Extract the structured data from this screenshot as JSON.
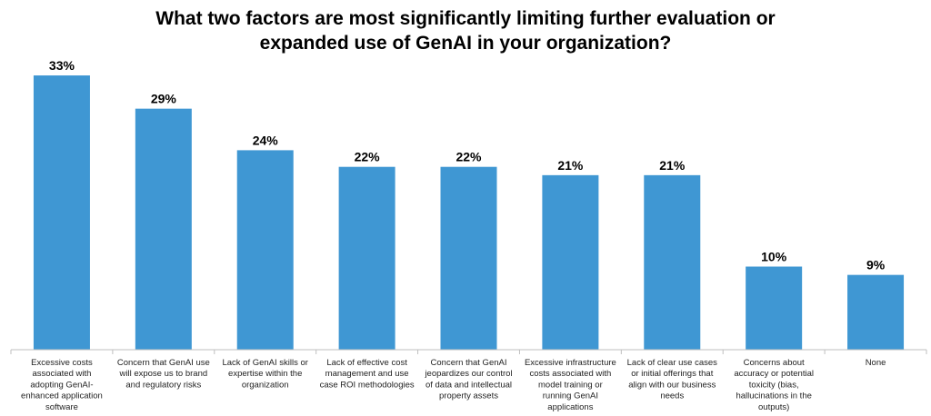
{
  "chart_data": {
    "type": "bar",
    "title_lines": [
      "What two factors are most significantly limiting further evaluation or",
      "expanded use of GenAI in your organization?"
    ],
    "categories": [
      [
        "Excessive costs",
        "associated with",
        "adopting GenAI-",
        "enhanced application",
        "software"
      ],
      [
        "Concern that GenAI use",
        "will expose us to brand",
        "and regulatory risks"
      ],
      [
        "Lack of GenAI skills or",
        "expertise within the",
        "organization"
      ],
      [
        "Lack of effective cost",
        "management and use",
        "case ROI methodologies"
      ],
      [
        "Concern that GenAI",
        "jeopardizes our control",
        "of data and intellectual",
        "property assets"
      ],
      [
        "Excessive infrastructure",
        "costs associated with",
        "model training or",
        "running GenAI",
        "applications"
      ],
      [
        "Lack of clear use cases",
        "or initial offerings that",
        "align with our business",
        "needs"
      ],
      [
        "Concerns about",
        "accuracy or potential",
        "toxicity (bias,",
        "hallucinations in the",
        "outputs)"
      ],
      [
        "None"
      ]
    ],
    "values": [
      33,
      29,
      24,
      22,
      22,
      21,
      21,
      10,
      9
    ],
    "value_labels": [
      "33%",
      "29%",
      "24%",
      "22%",
      "22%",
      "21%",
      "21%",
      "10%",
      "9%"
    ],
    "bar_color": "#3F97D3",
    "xlabel": "",
    "ylabel": "",
    "ylim": [
      0,
      35
    ],
    "grid": false,
    "legend": "none"
  }
}
